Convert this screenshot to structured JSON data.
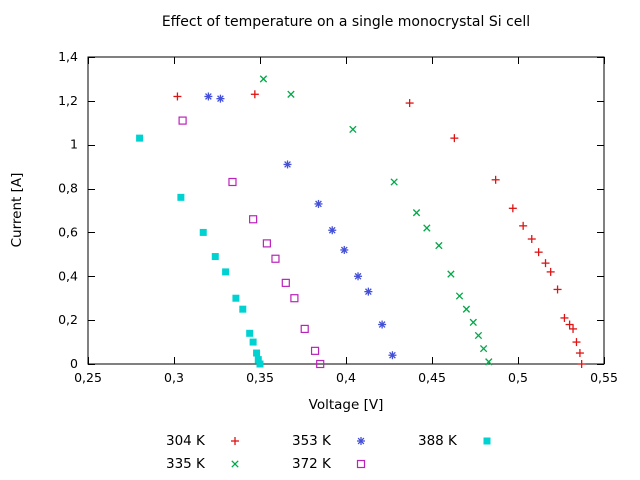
{
  "page": {
    "background": "#ffffff",
    "text_color": "#000000"
  },
  "chart_data": {
    "type": "scatter",
    "title": "Effect of temperature on a single monocrystal Si cell",
    "xlabel": "Voltage [V]",
    "ylabel": "Current [A]",
    "xlim": [
      0.25,
      0.55
    ],
    "ylim": [
      0,
      1.4
    ],
    "grid": false,
    "legend_position": "bottom",
    "xticks": {
      "values": [
        0.25,
        0.3,
        0.35,
        0.4,
        0.45,
        0.5,
        0.55
      ],
      "labels": [
        "0,25",
        "0,3",
        "0,35",
        "0,4",
        "0,45",
        "0,5",
        "0,55"
      ]
    },
    "yticks": {
      "values": [
        0,
        0.2,
        0.4,
        0.6,
        0.8,
        1,
        1.2,
        1.4
      ],
      "labels": [
        "0",
        "0,2",
        "0,4",
        "0,6",
        "0,8",
        "1",
        "1,2",
        "1,4"
      ]
    },
    "series": [
      {
        "name": "304 K",
        "marker": "plus",
        "color": "#dd1414",
        "points": [
          [
            0.302,
            1.22
          ],
          [
            0.347,
            1.23
          ],
          [
            0.437,
            1.19
          ],
          [
            0.463,
            1.03
          ],
          [
            0.487,
            0.84
          ],
          [
            0.497,
            0.71
          ],
          [
            0.503,
            0.63
          ],
          [
            0.508,
            0.57
          ],
          [
            0.512,
            0.51
          ],
          [
            0.516,
            0.46
          ],
          [
            0.519,
            0.42
          ],
          [
            0.523,
            0.34
          ],
          [
            0.527,
            0.21
          ],
          [
            0.53,
            0.18
          ],
          [
            0.532,
            0.16
          ],
          [
            0.534,
            0.1
          ],
          [
            0.536,
            0.05
          ],
          [
            0.537,
            0.0
          ]
        ]
      },
      {
        "name": "335 K",
        "marker": "cross",
        "color": "#00a846",
        "points": [
          [
            0.352,
            1.3
          ],
          [
            0.368,
            1.23
          ],
          [
            0.404,
            1.07
          ],
          [
            0.428,
            0.83
          ],
          [
            0.441,
            0.69
          ],
          [
            0.447,
            0.62
          ],
          [
            0.454,
            0.54
          ],
          [
            0.461,
            0.41
          ],
          [
            0.466,
            0.31
          ],
          [
            0.47,
            0.25
          ],
          [
            0.474,
            0.19
          ],
          [
            0.477,
            0.13
          ],
          [
            0.48,
            0.07
          ],
          [
            0.483,
            0.01
          ]
        ]
      },
      {
        "name": "353 K",
        "marker": "asterisk",
        "color": "#4450d8",
        "points": [
          [
            0.32,
            1.22
          ],
          [
            0.327,
            1.21
          ],
          [
            0.366,
            0.91
          ],
          [
            0.384,
            0.73
          ],
          [
            0.392,
            0.61
          ],
          [
            0.399,
            0.52
          ],
          [
            0.407,
            0.4
          ],
          [
            0.413,
            0.33
          ],
          [
            0.421,
            0.18
          ],
          [
            0.427,
            0.04
          ]
        ]
      },
      {
        "name": "372 K",
        "marker": "open-square",
        "color": "#bb22bb",
        "points": [
          [
            0.305,
            1.11
          ],
          [
            0.334,
            0.83
          ],
          [
            0.346,
            0.66
          ],
          [
            0.354,
            0.55
          ],
          [
            0.359,
            0.48
          ],
          [
            0.365,
            0.37
          ],
          [
            0.37,
            0.3
          ],
          [
            0.376,
            0.16
          ],
          [
            0.382,
            0.06
          ],
          [
            0.385,
            0.0
          ]
        ]
      },
      {
        "name": "388 K",
        "marker": "filled-square",
        "color": "#00d2d2",
        "points": [
          [
            0.28,
            1.03
          ],
          [
            0.304,
            0.76
          ],
          [
            0.317,
            0.6
          ],
          [
            0.324,
            0.49
          ],
          [
            0.33,
            0.42
          ],
          [
            0.336,
            0.3
          ],
          [
            0.34,
            0.25
          ],
          [
            0.344,
            0.14
          ],
          [
            0.346,
            0.1
          ],
          [
            0.348,
            0.05
          ],
          [
            0.349,
            0.02
          ],
          [
            0.35,
            0.0
          ]
        ]
      }
    ]
  }
}
